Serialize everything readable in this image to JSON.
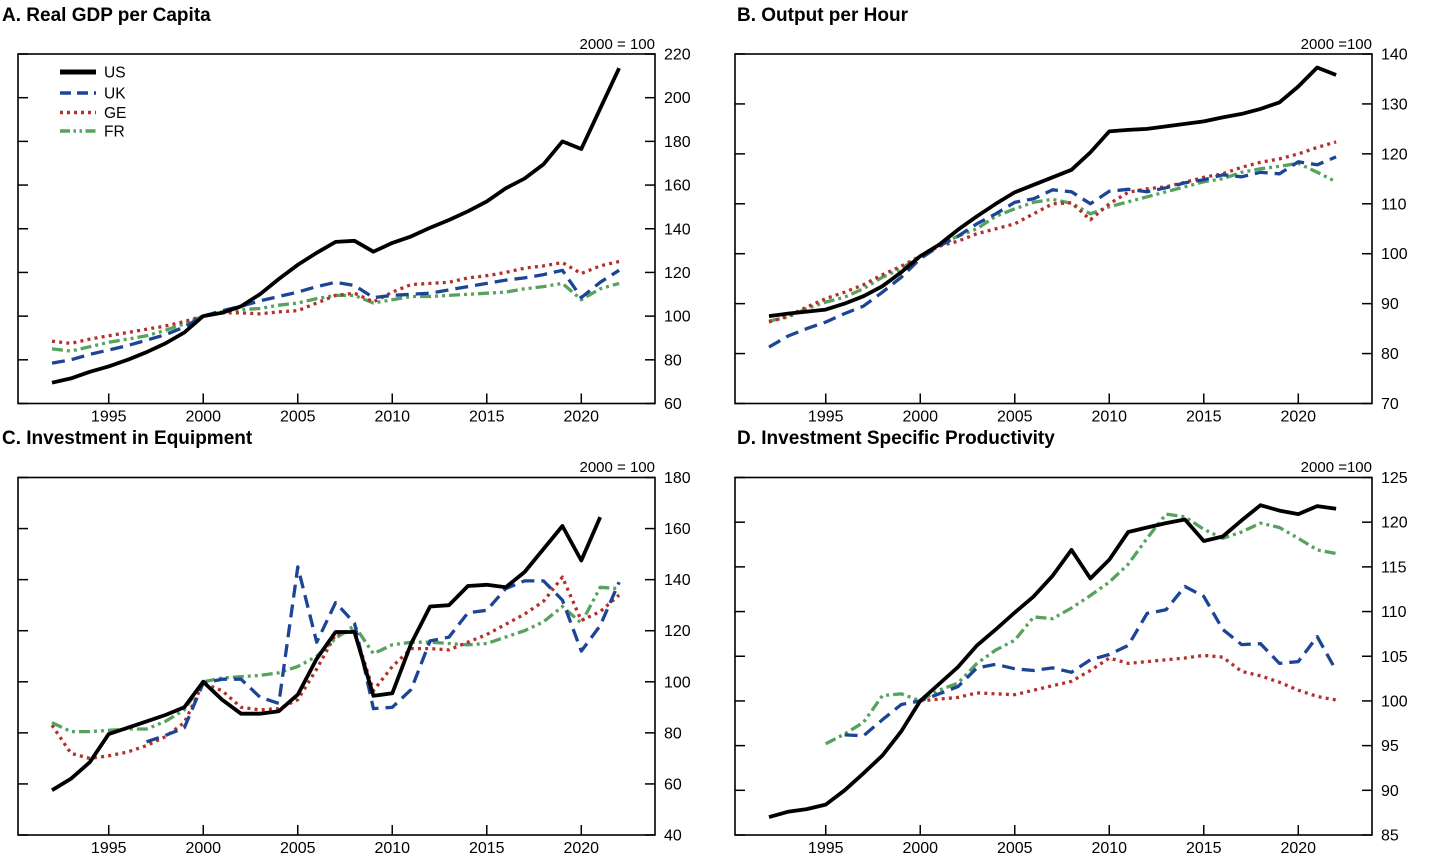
{
  "figure": {
    "background": "#ffffff",
    "legend_labels": [
      "US",
      "UK",
      "GE",
      "FR"
    ],
    "colors": {
      "US": "#000000",
      "UK": "#1c4596",
      "GE": "#b5302a",
      "FR": "#56a25e"
    }
  },
  "chart_data": [
    {
      "panel": "A",
      "type": "line",
      "title": "A. Real GDP per Capita",
      "annotation": "2000 = 100",
      "show_legend": true,
      "xlim": [
        1990.2,
        2023.9
      ],
      "ylim": [
        60,
        220
      ],
      "xticks": [
        1995,
        2000,
        2005,
        2010,
        2015,
        2020
      ],
      "yticks": [
        60,
        80,
        100,
        120,
        140,
        160,
        180,
        200,
        220
      ],
      "series": [
        {
          "name": "US",
          "color": "#000000",
          "style": "solid",
          "start": 1992,
          "values": [
            69.5,
            71.5,
            74.5,
            77,
            80,
            83.5,
            87.5,
            92.5,
            100,
            101.5,
            104.5,
            110,
            117,
            123.5,
            129,
            134,
            134.5,
            129.5,
            133.5,
            136.5,
            140.5,
            144,
            148,
            152.5,
            158.5,
            163,
            169.5,
            180,
            176.5,
            195,
            213.5
          ]
        },
        {
          "name": "UK",
          "color": "#1c4596",
          "style": "dashed",
          "start": 1992,
          "values": [
            78.5,
            80,
            82.5,
            84.5,
            86.5,
            89,
            91.5,
            95,
            100,
            102.5,
            104.5,
            107,
            109,
            111,
            113.5,
            115.5,
            114,
            108.5,
            109.5,
            110,
            110.5,
            112,
            113.5,
            115,
            116.5,
            117.5,
            119,
            121,
            108.5,
            115.5,
            121
          ]
        },
        {
          "name": "GE",
          "color": "#b5302a",
          "style": "dotted",
          "start": 1992,
          "values": [
            88.5,
            87.5,
            89.5,
            91,
            92.5,
            94,
            95.5,
            97.5,
            100,
            101.5,
            101.5,
            101,
            102,
            102.5,
            106,
            109.5,
            110.5,
            106.5,
            111,
            114.5,
            115,
            115.5,
            117.5,
            118.5,
            120,
            122,
            123,
            124.5,
            119.5,
            123,
            125
          ]
        },
        {
          "name": "FR",
          "color": "#56a25e",
          "style": "dashdotdot",
          "start": 1992,
          "values": [
            85,
            84,
            86,
            88,
            89.5,
            91,
            93.5,
            96.5,
            100,
            102,
            103,
            103.5,
            105,
            106,
            108,
            109.5,
            109.5,
            106,
            107.5,
            109,
            109,
            109.5,
            110,
            110.5,
            111,
            112.5,
            113.5,
            115,
            107.5,
            112.5,
            115
          ]
        }
      ]
    },
    {
      "panel": "B",
      "type": "line",
      "title": "B. Output per Hour",
      "annotation": "2000 =100",
      "show_legend": false,
      "xlim": [
        1990.2,
        2023.9
      ],
      "ylim": [
        70,
        140
      ],
      "xticks": [
        1995,
        2000,
        2005,
        2010,
        2015,
        2020
      ],
      "yticks": [
        70,
        80,
        90,
        100,
        110,
        120,
        130,
        140
      ],
      "series": [
        {
          "name": "US",
          "color": "#000000",
          "style": "solid",
          "start": 1992,
          "values": [
            87.5,
            88,
            88.4,
            88.8,
            90,
            91.5,
            93.5,
            96.3,
            99.5,
            101.8,
            104.8,
            107.5,
            110,
            112.3,
            113.8,
            115.3,
            116.8,
            120.3,
            124.5,
            124.8,
            125,
            125.5,
            126,
            126.5,
            127.3,
            128,
            129,
            130.3,
            133.5,
            137.3,
            135.8
          ]
        },
        {
          "name": "UK",
          "color": "#1c4596",
          "style": "dashed",
          "start": 1992,
          "values": [
            81.3,
            83.5,
            85,
            86.3,
            88,
            89.5,
            92.3,
            95.3,
            99,
            101.5,
            103.5,
            106,
            108,
            110.3,
            111,
            112.8,
            112.4,
            110,
            112.5,
            112.9,
            112.4,
            113.2,
            114.2,
            114.8,
            115.8,
            115.4,
            116.3,
            116,
            118.4,
            117.8,
            119.4
          ]
        },
        {
          "name": "GE",
          "color": "#b5302a",
          "style": "dotted",
          "start": 1992,
          "values": [
            86.3,
            87.5,
            89.3,
            91,
            92.3,
            93.8,
            95.8,
            97.5,
            99.5,
            101.5,
            102.5,
            104,
            105,
            106,
            108,
            110,
            110.2,
            106.8,
            110,
            112.3,
            113,
            113.4,
            114.3,
            115.3,
            116,
            117.3,
            118.3,
            119,
            120,
            121.3,
            122.4
          ]
        },
        {
          "name": "FR",
          "color": "#56a25e",
          "style": "dashdotdot",
          "start": 1992,
          "values": [
            86.5,
            87.3,
            89,
            90.3,
            91.3,
            93,
            95.3,
            97,
            99.5,
            101.8,
            103.5,
            105,
            107.5,
            109,
            110.3,
            110.9,
            110.1,
            108,
            109.4,
            110.4,
            111.4,
            112.4,
            113.4,
            114.4,
            115,
            116.3,
            117,
            117.5,
            118.1,
            116.3,
            114.4
          ]
        }
      ]
    },
    {
      "panel": "C",
      "type": "line",
      "title": "C. Investment in Equipment",
      "annotation": "2000 = 100",
      "show_legend": false,
      "xlim": [
        1990.2,
        2023.9
      ],
      "ylim": [
        40,
        180
      ],
      "xticks": [
        1995,
        2000,
        2005,
        2010,
        2015,
        2020
      ],
      "yticks": [
        40,
        60,
        80,
        100,
        120,
        140,
        160,
        180
      ],
      "series": [
        {
          "name": "US",
          "color": "#000000",
          "style": "solid",
          "start": 1992,
          "values": [
            57.5,
            62,
            68.5,
            79.5,
            82,
            84.5,
            87,
            90,
            100,
            93,
            87.5,
            87.5,
            88.5,
            95,
            109,
            119.5,
            119.5,
            94.5,
            95.5,
            115,
            129.5,
            130,
            137.5,
            138,
            137,
            143,
            152,
            161,
            147.5,
            164.5
          ]
        },
        {
          "name": "UK",
          "color": "#1c4596",
          "style": "dashed",
          "start": 1997,
          "values": [
            76.5,
            79,
            82,
            99.5,
            101,
            101,
            94,
            91.5,
            145,
            115.5,
            131,
            123,
            89.5,
            90,
            97,
            116,
            117.5,
            127,
            128,
            136.5,
            139.5,
            139.5,
            132,
            112,
            122,
            139
          ]
        },
        {
          "name": "GE",
          "color": "#b5302a",
          "style": "dotted",
          "start": 1992,
          "values": [
            83,
            72,
            70,
            71,
            72.5,
            75,
            78.5,
            84,
            99.5,
            96.5,
            90,
            89,
            89.5,
            93,
            105,
            118.5,
            120,
            96.5,
            106,
            113,
            113,
            112.5,
            115.5,
            118.5,
            122.5,
            126.5,
            131.5,
            141,
            124,
            127.5,
            134
          ]
        },
        {
          "name": "FR",
          "color": "#56a25e",
          "style": "dashdotdot",
          "start": 1992,
          "values": [
            84,
            80.5,
            80.5,
            81,
            81.5,
            81.5,
            84.5,
            89,
            100,
            101.5,
            102,
            102.5,
            103.5,
            106,
            110,
            117,
            122,
            111,
            114.5,
            115.5,
            115.5,
            115,
            114.5,
            115,
            117.5,
            120,
            123.5,
            129.5,
            123,
            137,
            136.5
          ]
        }
      ]
    },
    {
      "panel": "D",
      "type": "line",
      "title": "D. Investment Specific Productivity",
      "annotation": "2000 =100",
      "show_legend": false,
      "xlim": [
        1990.2,
        2023.9
      ],
      "ylim": [
        85,
        125
      ],
      "xticks": [
        1995,
        2000,
        2005,
        2010,
        2015,
        2020
      ],
      "yticks": [
        85,
        90,
        95,
        100,
        105,
        110,
        115,
        120,
        125
      ],
      "series": [
        {
          "name": "US",
          "color": "#000000",
          "style": "solid",
          "start": 1992,
          "values": [
            87,
            87.6,
            87.9,
            88.4,
            90,
            91.9,
            93.9,
            96.6,
            100,
            101.9,
            103.8,
            106.2,
            108,
            109.9,
            111.7,
            114,
            116.9,
            113.7,
            115.8,
            118.9,
            119.4,
            119.9,
            120.3,
            117.9,
            118.4,
            120.2,
            121.9,
            121.3,
            120.9,
            121.8,
            121.5
          ]
        },
        {
          "name": "UK",
          "color": "#1c4596",
          "style": "dashed",
          "start": 1996,
          "values": [
            96.2,
            96.1,
            97.9,
            99.6,
            100,
            100.8,
            101.6,
            103.7,
            104.1,
            103.6,
            103.4,
            103.7,
            103.2,
            104.6,
            105.2,
            106.2,
            109.8,
            110.2,
            112.8,
            111.7,
            108,
            106.3,
            106.4,
            104.2,
            104.4,
            107.2,
            103.4
          ]
        },
        {
          "name": "GE",
          "color": "#b5302a",
          "style": "dotted",
          "start": 2000,
          "values": [
            100,
            100.2,
            100.4,
            100.9,
            100.8,
            100.7,
            101.2,
            101.7,
            102.2,
            103.4,
            104.8,
            104.2,
            104.4,
            104.6,
            104.8,
            105.1,
            104.9,
            103.3,
            102.8,
            102.1,
            101.2,
            100.5,
            100.1
          ]
        },
        {
          "name": "FR",
          "color": "#56a25e",
          "style": "dashdotdot",
          "start": 1995,
          "values": [
            95.2,
            96.3,
            97.6,
            100.6,
            100.8,
            100,
            101.2,
            102,
            104.2,
            105.7,
            106.8,
            109.4,
            109.2,
            110.4,
            111.8,
            113.3,
            115.3,
            118.2,
            120.9,
            120.6,
            119.2,
            118.2,
            118.9,
            119.9,
            119.4,
            118.2,
            116.9,
            116.5
          ]
        }
      ]
    }
  ]
}
